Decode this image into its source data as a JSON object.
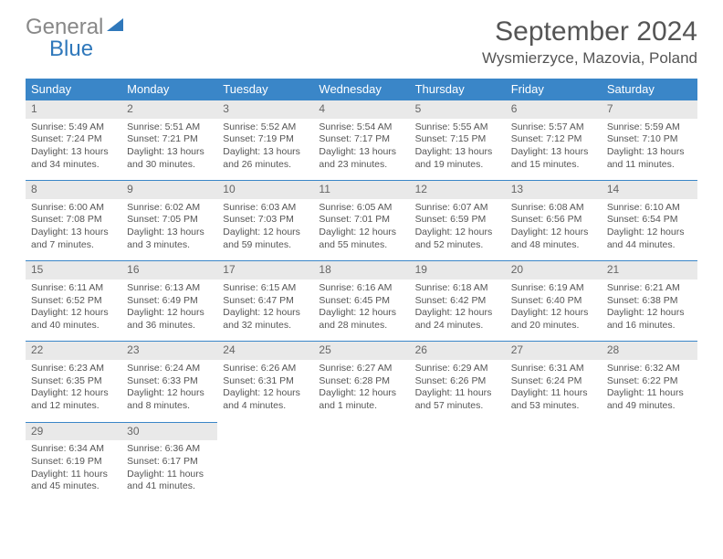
{
  "logo": {
    "word1": "General",
    "word2": "Blue"
  },
  "title": "September 2024",
  "location": "Wysmierzyce, Mazovia, Poland",
  "colors": {
    "header_bg": "#3a86c8",
    "header_text": "#ffffff",
    "rule": "#3a86c8",
    "daynum_bg": "#e9e9e9",
    "body_text": "#555555",
    "logo_gray": "#888888",
    "logo_blue": "#2f78bb",
    "background": "#ffffff"
  },
  "fonts": {
    "title_pt": 30,
    "location_pt": 17,
    "header_pt": 13,
    "cell_pt": 10.5
  },
  "weekdays": [
    "Sunday",
    "Monday",
    "Tuesday",
    "Wednesday",
    "Thursday",
    "Friday",
    "Saturday"
  ],
  "weeks": [
    [
      {
        "n": "1",
        "sr": "Sunrise: 5:49 AM",
        "ss": "Sunset: 7:24 PM",
        "dl": "Daylight: 13 hours and 34 minutes."
      },
      {
        "n": "2",
        "sr": "Sunrise: 5:51 AM",
        "ss": "Sunset: 7:21 PM",
        "dl": "Daylight: 13 hours and 30 minutes."
      },
      {
        "n": "3",
        "sr": "Sunrise: 5:52 AM",
        "ss": "Sunset: 7:19 PM",
        "dl": "Daylight: 13 hours and 26 minutes."
      },
      {
        "n": "4",
        "sr": "Sunrise: 5:54 AM",
        "ss": "Sunset: 7:17 PM",
        "dl": "Daylight: 13 hours and 23 minutes."
      },
      {
        "n": "5",
        "sr": "Sunrise: 5:55 AM",
        "ss": "Sunset: 7:15 PM",
        "dl": "Daylight: 13 hours and 19 minutes."
      },
      {
        "n": "6",
        "sr": "Sunrise: 5:57 AM",
        "ss": "Sunset: 7:12 PM",
        "dl": "Daylight: 13 hours and 15 minutes."
      },
      {
        "n": "7",
        "sr": "Sunrise: 5:59 AM",
        "ss": "Sunset: 7:10 PM",
        "dl": "Daylight: 13 hours and 11 minutes."
      }
    ],
    [
      {
        "n": "8",
        "sr": "Sunrise: 6:00 AM",
        "ss": "Sunset: 7:08 PM",
        "dl": "Daylight: 13 hours and 7 minutes."
      },
      {
        "n": "9",
        "sr": "Sunrise: 6:02 AM",
        "ss": "Sunset: 7:05 PM",
        "dl": "Daylight: 13 hours and 3 minutes."
      },
      {
        "n": "10",
        "sr": "Sunrise: 6:03 AM",
        "ss": "Sunset: 7:03 PM",
        "dl": "Daylight: 12 hours and 59 minutes."
      },
      {
        "n": "11",
        "sr": "Sunrise: 6:05 AM",
        "ss": "Sunset: 7:01 PM",
        "dl": "Daylight: 12 hours and 55 minutes."
      },
      {
        "n": "12",
        "sr": "Sunrise: 6:07 AM",
        "ss": "Sunset: 6:59 PM",
        "dl": "Daylight: 12 hours and 52 minutes."
      },
      {
        "n": "13",
        "sr": "Sunrise: 6:08 AM",
        "ss": "Sunset: 6:56 PM",
        "dl": "Daylight: 12 hours and 48 minutes."
      },
      {
        "n": "14",
        "sr": "Sunrise: 6:10 AM",
        "ss": "Sunset: 6:54 PM",
        "dl": "Daylight: 12 hours and 44 minutes."
      }
    ],
    [
      {
        "n": "15",
        "sr": "Sunrise: 6:11 AM",
        "ss": "Sunset: 6:52 PM",
        "dl": "Daylight: 12 hours and 40 minutes."
      },
      {
        "n": "16",
        "sr": "Sunrise: 6:13 AM",
        "ss": "Sunset: 6:49 PM",
        "dl": "Daylight: 12 hours and 36 minutes."
      },
      {
        "n": "17",
        "sr": "Sunrise: 6:15 AM",
        "ss": "Sunset: 6:47 PM",
        "dl": "Daylight: 12 hours and 32 minutes."
      },
      {
        "n": "18",
        "sr": "Sunrise: 6:16 AM",
        "ss": "Sunset: 6:45 PM",
        "dl": "Daylight: 12 hours and 28 minutes."
      },
      {
        "n": "19",
        "sr": "Sunrise: 6:18 AM",
        "ss": "Sunset: 6:42 PM",
        "dl": "Daylight: 12 hours and 24 minutes."
      },
      {
        "n": "20",
        "sr": "Sunrise: 6:19 AM",
        "ss": "Sunset: 6:40 PM",
        "dl": "Daylight: 12 hours and 20 minutes."
      },
      {
        "n": "21",
        "sr": "Sunrise: 6:21 AM",
        "ss": "Sunset: 6:38 PM",
        "dl": "Daylight: 12 hours and 16 minutes."
      }
    ],
    [
      {
        "n": "22",
        "sr": "Sunrise: 6:23 AM",
        "ss": "Sunset: 6:35 PM",
        "dl": "Daylight: 12 hours and 12 minutes."
      },
      {
        "n": "23",
        "sr": "Sunrise: 6:24 AM",
        "ss": "Sunset: 6:33 PM",
        "dl": "Daylight: 12 hours and 8 minutes."
      },
      {
        "n": "24",
        "sr": "Sunrise: 6:26 AM",
        "ss": "Sunset: 6:31 PM",
        "dl": "Daylight: 12 hours and 4 minutes."
      },
      {
        "n": "25",
        "sr": "Sunrise: 6:27 AM",
        "ss": "Sunset: 6:28 PM",
        "dl": "Daylight: 12 hours and 1 minute."
      },
      {
        "n": "26",
        "sr": "Sunrise: 6:29 AM",
        "ss": "Sunset: 6:26 PM",
        "dl": "Daylight: 11 hours and 57 minutes."
      },
      {
        "n": "27",
        "sr": "Sunrise: 6:31 AM",
        "ss": "Sunset: 6:24 PM",
        "dl": "Daylight: 11 hours and 53 minutes."
      },
      {
        "n": "28",
        "sr": "Sunrise: 6:32 AM",
        "ss": "Sunset: 6:22 PM",
        "dl": "Daylight: 11 hours and 49 minutes."
      }
    ],
    [
      {
        "n": "29",
        "sr": "Sunrise: 6:34 AM",
        "ss": "Sunset: 6:19 PM",
        "dl": "Daylight: 11 hours and 45 minutes."
      },
      {
        "n": "30",
        "sr": "Sunrise: 6:36 AM",
        "ss": "Sunset: 6:17 PM",
        "dl": "Daylight: 11 hours and 41 minutes."
      },
      null,
      null,
      null,
      null,
      null
    ]
  ]
}
